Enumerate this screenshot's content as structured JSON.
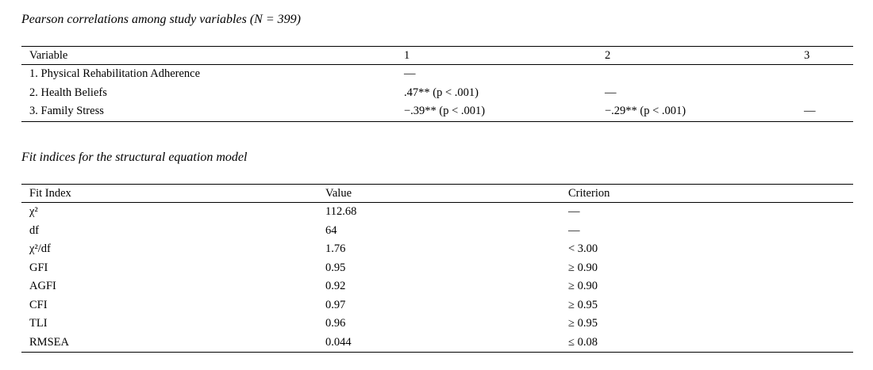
{
  "table1": {
    "caption": "Pearson correlations among study variables (N = 399)",
    "headers": [
      "Variable",
      "1",
      "2",
      "3"
    ],
    "rows": [
      {
        "variable": "1. Physical Rehabilitation Adherence",
        "c1": "—",
        "c2": "",
        "c3": ""
      },
      {
        "variable": "2. Health Beliefs",
        "c1": ".47** (p < .001)",
        "c2": "—",
        "c3": ""
      },
      {
        "variable": "3. Family Stress",
        "c1": "−.39** (p < .001)",
        "c2": "−.29** (p < .001)",
        "c3": "—"
      }
    ]
  },
  "table2": {
    "caption": "Fit indices for the structural equation model",
    "headers": [
      "Fit Index",
      "Value",
      "Criterion"
    ],
    "rows": [
      {
        "index": "χ²",
        "value": "112.68",
        "criterion": "—"
      },
      {
        "index": "df",
        "value": "64",
        "criterion": "—"
      },
      {
        "index": "χ²/df",
        "value": "1.76",
        "criterion": "< 3.00"
      },
      {
        "index": "GFI",
        "value": "0.95",
        "criterion": "≥ 0.90"
      },
      {
        "index": "AGFI",
        "value": "0.92",
        "criterion": "≥ 0.90"
      },
      {
        "index": "CFI",
        "value": "0.97",
        "criterion": "≥ 0.95"
      },
      {
        "index": "TLI",
        "value": "0.96",
        "criterion": "≥ 0.95"
      },
      {
        "index": "RMSEA",
        "value": "0.044",
        "criterion": "≤ 0.08"
      }
    ]
  }
}
